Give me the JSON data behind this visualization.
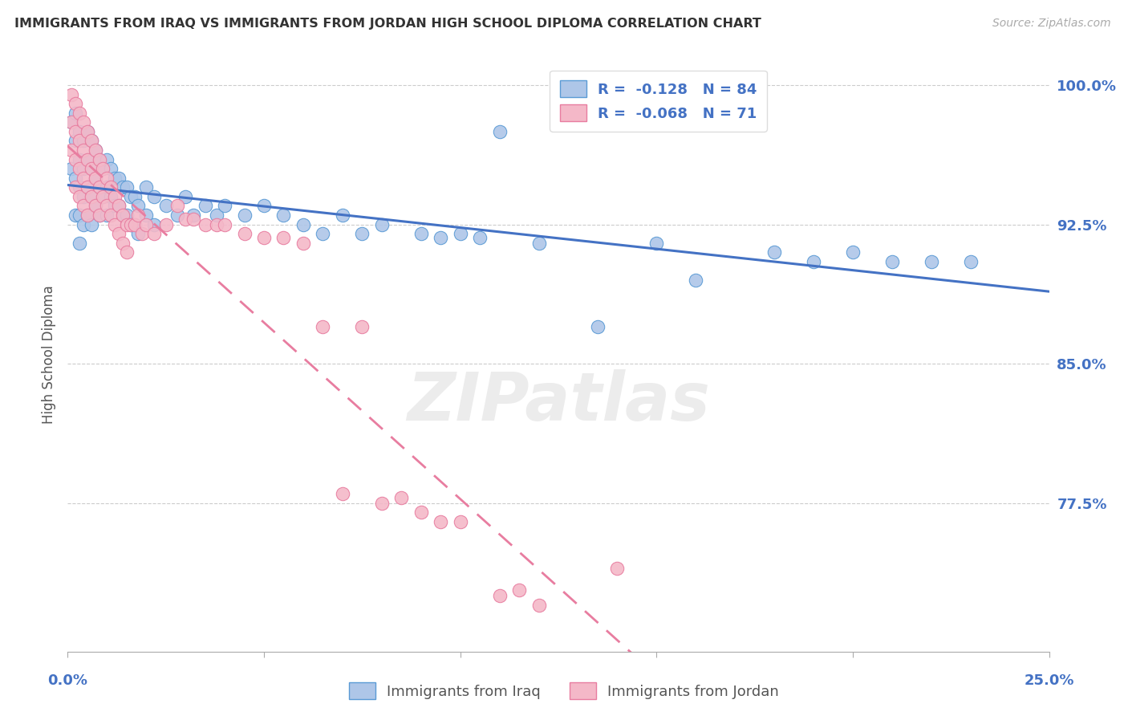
{
  "title": "IMMIGRANTS FROM IRAQ VS IMMIGRANTS FROM JORDAN HIGH SCHOOL DIPLOMA CORRELATION CHART",
  "source": "Source: ZipAtlas.com",
  "ylabel": "High School Diploma",
  "ytick_vals": [
    1.0,
    0.925,
    0.85,
    0.775
  ],
  "ytick_labels": [
    "100.0%",
    "92.5%",
    "85.0%",
    "77.5%"
  ],
  "xlim": [
    0.0,
    0.25
  ],
  "ylim": [
    0.695,
    1.015
  ],
  "iraq_R": -0.128,
  "iraq_N": 84,
  "jordan_R": -0.068,
  "jordan_N": 71,
  "iraq_color": "#aec6e8",
  "iraq_edge_color": "#5b9bd5",
  "jordan_color": "#f4b8c8",
  "jordan_edge_color": "#e87da0",
  "legend_iraq": "Immigrants from Iraq",
  "legend_jordan": "Immigrants from Jordan",
  "watermark_text": "ZIPatlas",
  "background_color": "#ffffff",
  "grid_color": "#cccccc",
  "axis_label_color": "#4472c4",
  "iraq_line_color": "#4472c4",
  "jordan_line_color": "#e87da0",
  "iraq_x": [
    0.001,
    0.001,
    0.002,
    0.002,
    0.002,
    0.002,
    0.003,
    0.003,
    0.003,
    0.003,
    0.003,
    0.004,
    0.004,
    0.004,
    0.004,
    0.005,
    0.005,
    0.005,
    0.005,
    0.006,
    0.006,
    0.006,
    0.006,
    0.007,
    0.007,
    0.007,
    0.008,
    0.008,
    0.008,
    0.009,
    0.009,
    0.01,
    0.01,
    0.01,
    0.011,
    0.011,
    0.012,
    0.012,
    0.013,
    0.013,
    0.014,
    0.014,
    0.015,
    0.015,
    0.016,
    0.016,
    0.017,
    0.017,
    0.018,
    0.018,
    0.02,
    0.02,
    0.022,
    0.022,
    0.025,
    0.028,
    0.03,
    0.032,
    0.035,
    0.038,
    0.04,
    0.045,
    0.05,
    0.055,
    0.06,
    0.065,
    0.07,
    0.075,
    0.08,
    0.09,
    0.1,
    0.12,
    0.15,
    0.18,
    0.2,
    0.21,
    0.22,
    0.23,
    0.135,
    0.16,
    0.095,
    0.105,
    0.11,
    0.19
  ],
  "iraq_y": [
    0.98,
    0.955,
    0.985,
    0.97,
    0.95,
    0.93,
    0.975,
    0.96,
    0.945,
    0.93,
    0.915,
    0.97,
    0.955,
    0.94,
    0.925,
    0.975,
    0.96,
    0.945,
    0.93,
    0.97,
    0.955,
    0.94,
    0.925,
    0.965,
    0.95,
    0.935,
    0.96,
    0.945,
    0.93,
    0.955,
    0.94,
    0.96,
    0.945,
    0.93,
    0.955,
    0.94,
    0.95,
    0.935,
    0.95,
    0.935,
    0.945,
    0.93,
    0.945,
    0.93,
    0.94,
    0.925,
    0.94,
    0.925,
    0.935,
    0.92,
    0.945,
    0.93,
    0.94,
    0.925,
    0.935,
    0.93,
    0.94,
    0.93,
    0.935,
    0.93,
    0.935,
    0.93,
    0.935,
    0.93,
    0.925,
    0.92,
    0.93,
    0.92,
    0.925,
    0.92,
    0.92,
    0.915,
    0.915,
    0.91,
    0.91,
    0.905,
    0.905,
    0.905,
    0.87,
    0.895,
    0.918,
    0.918,
    0.975,
    0.905
  ],
  "jordan_x": [
    0.001,
    0.001,
    0.001,
    0.002,
    0.002,
    0.002,
    0.002,
    0.003,
    0.003,
    0.003,
    0.003,
    0.004,
    0.004,
    0.004,
    0.004,
    0.005,
    0.005,
    0.005,
    0.005,
    0.006,
    0.006,
    0.006,
    0.007,
    0.007,
    0.007,
    0.008,
    0.008,
    0.008,
    0.009,
    0.009,
    0.01,
    0.01,
    0.011,
    0.011,
    0.012,
    0.012,
    0.013,
    0.013,
    0.014,
    0.014,
    0.015,
    0.015,
    0.016,
    0.017,
    0.018,
    0.019,
    0.02,
    0.022,
    0.025,
    0.028,
    0.03,
    0.032,
    0.035,
    0.038,
    0.04,
    0.045,
    0.05,
    0.055,
    0.06,
    0.07,
    0.08,
    0.09,
    0.1,
    0.11,
    0.12,
    0.14,
    0.115,
    0.095,
    0.085,
    0.075,
    0.065
  ],
  "jordan_y": [
    0.995,
    0.98,
    0.965,
    0.99,
    0.975,
    0.96,
    0.945,
    0.985,
    0.97,
    0.955,
    0.94,
    0.98,
    0.965,
    0.95,
    0.935,
    0.975,
    0.96,
    0.945,
    0.93,
    0.97,
    0.955,
    0.94,
    0.965,
    0.95,
    0.935,
    0.96,
    0.945,
    0.93,
    0.955,
    0.94,
    0.95,
    0.935,
    0.945,
    0.93,
    0.94,
    0.925,
    0.935,
    0.92,
    0.93,
    0.915,
    0.925,
    0.91,
    0.925,
    0.925,
    0.93,
    0.92,
    0.925,
    0.92,
    0.925,
    0.935,
    0.928,
    0.928,
    0.925,
    0.925,
    0.925,
    0.92,
    0.918,
    0.918,
    0.915,
    0.78,
    0.775,
    0.77,
    0.765,
    0.725,
    0.72,
    0.74,
    0.728,
    0.765,
    0.778,
    0.87,
    0.87
  ]
}
